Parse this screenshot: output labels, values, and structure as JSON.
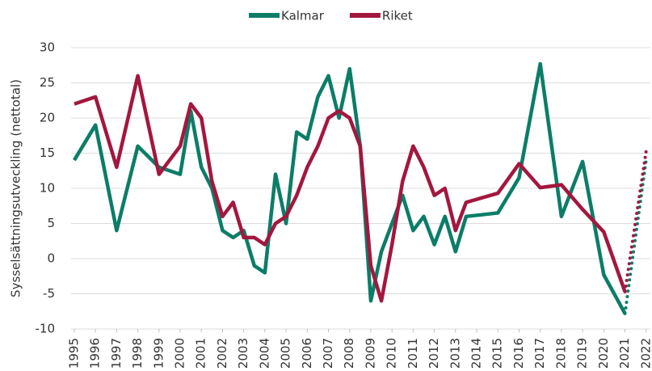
{
  "chart_data": {
    "type": "line",
    "ylabel": "Sysselsättningsutveckling (nettotal)",
    "x": [
      1995,
      1996,
      1997,
      1998,
      1999,
      2000,
      2000.5,
      2001,
      2001.5,
      2002,
      2002.5,
      2003,
      2003.5,
      2004,
      2004.5,
      2005,
      2005.5,
      2006,
      2006.5,
      2007,
      2007.5,
      2008,
      2008.5,
      2009,
      2009.5,
      2010,
      2010.5,
      2011,
      2011.5,
      2012,
      2012.5,
      2013,
      2013.5,
      2015,
      2016,
      2017,
      2018,
      2019,
      2020,
      2021,
      2022
    ],
    "series": [
      {
        "name": "Kalmar",
        "color": "#0b7d67",
        "values": [
          14,
          19,
          4,
          16,
          13,
          12,
          21,
          13,
          10,
          4,
          3,
          4,
          -1,
          -2,
          12,
          5,
          18,
          17,
          23,
          26,
          20,
          27,
          16,
          -6,
          1,
          5,
          9,
          4,
          6,
          2,
          6,
          1,
          6,
          6.5,
          11.5,
          27.7,
          6,
          13.8,
          -2.3,
          -7.8,
          14
        ]
      },
      {
        "name": "Riket",
        "color": "#a3173f",
        "values": [
          22,
          23,
          13,
          26,
          12,
          16,
          22,
          20,
          11,
          6,
          8,
          3,
          3,
          2,
          5,
          6,
          9,
          13,
          16,
          20,
          21,
          20,
          16,
          -1,
          -6,
          2,
          11,
          16,
          13,
          9,
          10,
          4,
          8,
          9.3,
          13.5,
          10.1,
          10.5,
          7,
          3.8,
          -4.7,
          15.3
        ]
      }
    ],
    "dotted_after": 2021,
    "xlim": [
      1994.85,
      2022.2
    ],
    "xticks": [
      1995,
      1996,
      1997,
      1998,
      1999,
      2000,
      2001,
      2002,
      2003,
      2004,
      2005,
      2006,
      2007,
      2008,
      2009,
      2010,
      2011,
      2012,
      2013,
      2014,
      2015,
      2016,
      2017,
      2018,
      2019,
      2020,
      2021,
      2022
    ],
    "ylim": [
      -10,
      30
    ],
    "yticks": [
      -10,
      -5,
      0,
      5,
      10,
      15,
      20,
      25,
      30
    ],
    "grid": true,
    "legend": "top"
  }
}
